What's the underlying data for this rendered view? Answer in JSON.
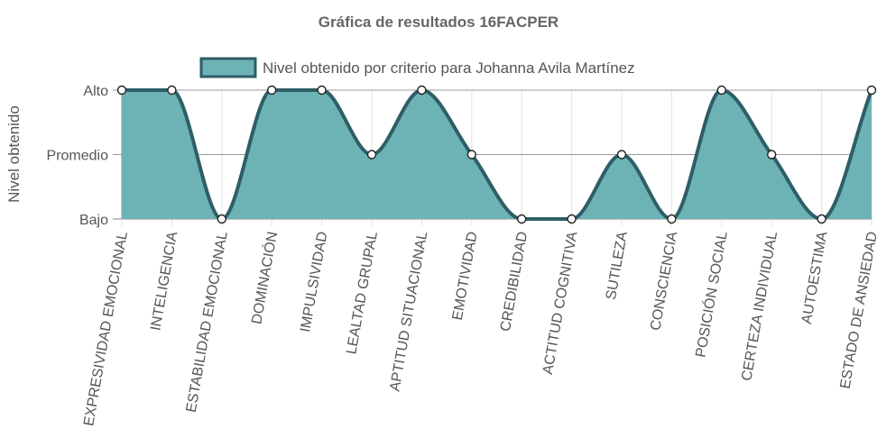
{
  "chart_data": {
    "type": "line",
    "title": "Gráfica de resultados 16FACPER",
    "ylabel": "Nivel obtenido",
    "xlabel": "",
    "y_levels": [
      "Bajo",
      "Promedio",
      "Alto"
    ],
    "categories": [
      "EXPRESIVIDAD EMOCIONAL",
      "INTELIGENCIA",
      "ESTABILIDAD EMOCIONAL",
      "DOMINACIÓN",
      "IMPULSIVIDAD",
      "LEALTAD GRUPAL",
      "APTITUD SITUACIONAL",
      "EMOTIVIDAD",
      "CREDIBILIDAD",
      "ACTITUD COGNITIVA",
      "SUTILEZA",
      "CONSCIENCIA",
      "POSICIÓN SOCIAL",
      "CERTEZA INDIVIDUAL",
      "AUTOESTIMA",
      "ESTADO DE ANSIEDAD"
    ],
    "series": [
      {
        "name": "Nivel obtenido por criterio para Johanna Avila Martínez",
        "values": [
          "Alto",
          "Alto",
          "Bajo",
          "Alto",
          "Alto",
          "Promedio",
          "Alto",
          "Promedio",
          "Bajo",
          "Bajo",
          "Promedio",
          "Bajo",
          "Alto",
          "Promedio",
          "Bajo",
          "Alto"
        ],
        "fill": true,
        "smooth": true
      }
    ],
    "legend_position": "top",
    "grid": true,
    "colors": {
      "line": "#2e5e66",
      "fill": "#6db3b5",
      "grid": "#e3e3e3",
      "axis": "#888888"
    }
  }
}
